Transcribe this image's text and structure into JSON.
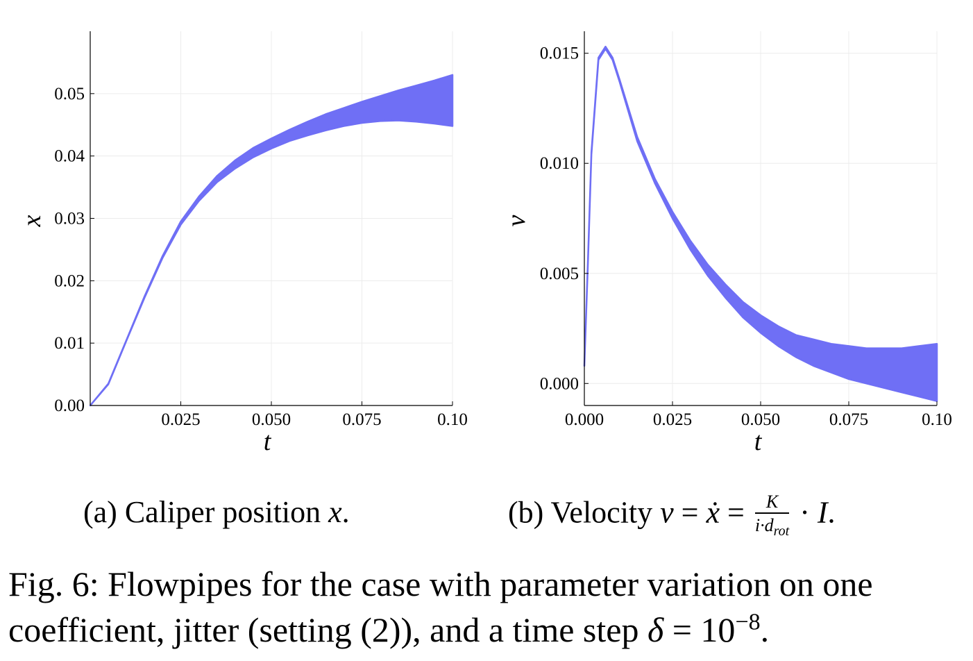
{
  "figure": {
    "caption": {
      "prefix": "Fig. 6: Flowpipes for the case with parameter variation on one coefficient, jitter (setting (2)), and a time step ",
      "delta": "δ",
      "equals": " = 10",
      "exponent": "−8",
      "suffix": "."
    },
    "subcaptions": {
      "a": {
        "prefix": "(a) Caliper position ",
        "var": "x",
        "suffix": "."
      },
      "b": {
        "prefix": "(b) Velocity ",
        "expr1": "v",
        "eq1": " = ",
        "expr2": "ẋ",
        "eq2": " = ",
        "frac_num": "K",
        "frac_den_i": "i",
        "frac_den_dot": "·",
        "frac_den_d": "d",
        "frac_den_sub": "rot",
        "tail": " · ",
        "tail_var": "I",
        "suffix": "."
      }
    }
  },
  "chart_data": [
    {
      "type": "area",
      "panel": "a",
      "xlabel": "t",
      "ylabel": "x",
      "xlim": [
        0.0,
        0.1
      ],
      "ylim": [
        0.0,
        0.06
      ],
      "xticks": [
        0.025,
        0.05,
        0.075,
        0.1
      ],
      "xtick_labels": [
        "0.025",
        "0.050",
        "0.075",
        "0.10"
      ],
      "yticks": [
        0.0,
        0.01,
        0.02,
        0.03,
        0.04,
        0.05
      ],
      "ytick_labels": [
        "0.00",
        "0.01",
        "0.02",
        "0.03",
        "0.04",
        "0.05"
      ],
      "grid": true,
      "color": "#6f6ff5",
      "band": {
        "x": [
          0.0,
          0.005,
          0.01,
          0.015,
          0.02,
          0.025,
          0.03,
          0.035,
          0.04,
          0.045,
          0.05,
          0.055,
          0.06,
          0.065,
          0.07,
          0.075,
          0.08,
          0.085,
          0.09,
          0.095,
          0.1
        ],
        "upper": [
          0.0,
          0.0035,
          0.0105,
          0.0175,
          0.024,
          0.0295,
          0.0335,
          0.0368,
          0.0393,
          0.0413,
          0.0428,
          0.0442,
          0.0455,
          0.0467,
          0.0477,
          0.0487,
          0.0496,
          0.0505,
          0.0513,
          0.0521,
          0.053
        ],
        "lower": [
          0.0,
          0.0034,
          0.0104,
          0.0173,
          0.0237,
          0.029,
          0.0328,
          0.0358,
          0.038,
          0.0398,
          0.0412,
          0.0424,
          0.0433,
          0.0441,
          0.0448,
          0.0453,
          0.0456,
          0.0457,
          0.0455,
          0.0452,
          0.0448
        ]
      }
    },
    {
      "type": "area",
      "panel": "b",
      "xlabel": "t",
      "ylabel": "v",
      "xlim": [
        0.0,
        0.1
      ],
      "ylim": [
        -0.001,
        0.016
      ],
      "xticks": [
        0.0,
        0.025,
        0.05,
        0.075,
        0.1
      ],
      "xtick_labels": [
        "0.000",
        "0.025",
        "0.050",
        "0.075",
        "0.10"
      ],
      "yticks": [
        0.0,
        0.005,
        0.01,
        0.015
      ],
      "ytick_labels": [
        "0.000",
        "0.005",
        "0.010",
        "0.015"
      ],
      "grid": true,
      "color": "#6f6ff5",
      "band": {
        "x": [
          0.0,
          0.001,
          0.002,
          0.004,
          0.006,
          0.008,
          0.01,
          0.015,
          0.02,
          0.025,
          0.03,
          0.035,
          0.04,
          0.045,
          0.05,
          0.055,
          0.06,
          0.065,
          0.07,
          0.075,
          0.08,
          0.085,
          0.09,
          0.095,
          0.1
        ],
        "upper": [
          0.0008,
          0.0055,
          0.0105,
          0.0148,
          0.0153,
          0.0148,
          0.0138,
          0.0112,
          0.0093,
          0.0078,
          0.0065,
          0.0054,
          0.0045,
          0.0037,
          0.0031,
          0.0026,
          0.0022,
          0.002,
          0.0018,
          0.0017,
          0.0016,
          0.0016,
          0.0016,
          0.0017,
          0.0018
        ],
        "lower": [
          0.0008,
          0.0054,
          0.0104,
          0.0147,
          0.0152,
          0.0147,
          0.0137,
          0.011,
          0.0091,
          0.0075,
          0.0061,
          0.0049,
          0.0039,
          0.003,
          0.0023,
          0.0017,
          0.0012,
          0.0008,
          0.0005,
          0.0002,
          0.0,
          -0.0002,
          -0.0004,
          -0.0006,
          -0.0008
        ]
      }
    }
  ]
}
